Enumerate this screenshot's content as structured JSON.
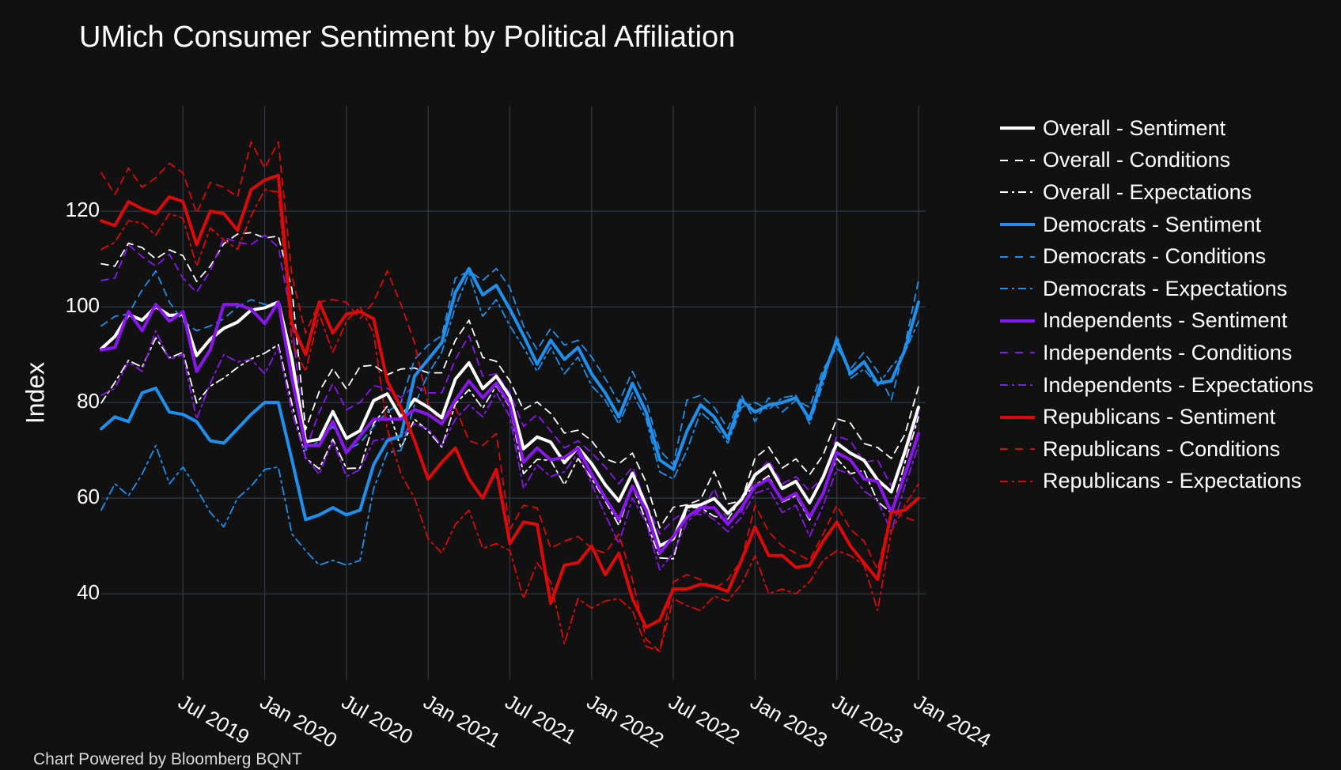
{
  "title": "UMich Consumer Sentiment by Political Affiliation",
  "footer": "Chart Powered by Bloomberg BQNT",
  "colors": {
    "background": "#111111",
    "grid": "#2e3a4a",
    "overall": "#ffffff",
    "democrats": "#1e90ee",
    "independents": "#8a16ee",
    "republicans": "#dd0a0a"
  },
  "chart_data": {
    "type": "line",
    "title": "UMich Consumer Sentiment by Political Affiliation",
    "xlabel": "",
    "ylabel": "Index",
    "ylim": [
      22,
      142
    ],
    "y_ticks": [
      40,
      60,
      80,
      100,
      120
    ],
    "x_ticks": [
      "Jul 2019",
      "Jan 2020",
      "Jul 2020",
      "Jan 2021",
      "Jul 2021",
      "Jan 2022",
      "Jul 2022",
      "Jan 2023",
      "Jul 2023",
      "Jan 2024"
    ],
    "grid": true,
    "legend_position": "right",
    "x": [
      "2019-01",
      "2019-02",
      "2019-03",
      "2019-04",
      "2019-05",
      "2019-06",
      "2019-07",
      "2019-08",
      "2019-09",
      "2019-10",
      "2019-11",
      "2019-12",
      "2020-01",
      "2020-02",
      "2020-03",
      "2020-04",
      "2020-05",
      "2020-06",
      "2020-07",
      "2020-08",
      "2020-09",
      "2020-10",
      "2020-11",
      "2020-12",
      "2021-01",
      "2021-02",
      "2021-03",
      "2021-04",
      "2021-05",
      "2021-06",
      "2021-07",
      "2021-08",
      "2021-09",
      "2021-10",
      "2021-11",
      "2021-12",
      "2022-01",
      "2022-02",
      "2022-03",
      "2022-04",
      "2022-05",
      "2022-06",
      "2022-07",
      "2022-08",
      "2022-09",
      "2022-10",
      "2022-11",
      "2022-12",
      "2023-01",
      "2023-02",
      "2023-03",
      "2023-04",
      "2023-05",
      "2023-06",
      "2023-07",
      "2023-08",
      "2023-09",
      "2023-10",
      "2023-11",
      "2023-12",
      "2024-01"
    ],
    "series": [
      {
        "name": "Overall - Sentiment",
        "group": "overall",
        "style": "solid",
        "values": [
          91.2,
          93.8,
          98.4,
          97.2,
          100.0,
          98.2,
          98.4,
          89.8,
          93.2,
          95.5,
          96.8,
          99.3,
          99.8,
          101.0,
          89.1,
          71.8,
          72.3,
          78.1,
          72.5,
          74.1,
          80.4,
          81.8,
          76.9,
          80.7,
          79.0,
          76.8,
          84.9,
          88.3,
          82.9,
          85.5,
          81.2,
          70.3,
          72.8,
          71.7,
          67.4,
          70.6,
          67.2,
          62.8,
          59.4,
          65.2,
          58.4,
          50.0,
          51.5,
          58.2,
          58.6,
          59.9,
          56.8,
          59.7,
          64.9,
          67.0,
          62.0,
          63.5,
          59.0,
          64.4,
          71.5,
          69.4,
          67.9,
          63.8,
          61.3,
          69.7,
          79.0
        ]
      },
      {
        "name": "Overall - Conditions",
        "group": "overall",
        "style": "dash",
        "values": [
          109.0,
          108.5,
          113.3,
          112.4,
          110.0,
          111.9,
          110.7,
          105.3,
          108.5,
          113.2,
          115.2,
          115.5,
          114.4,
          114.8,
          103.7,
          74.3,
          82.3,
          87.1,
          82.8,
          87.5,
          87.8,
          85.8,
          87.0,
          87.2,
          86.2,
          86.2,
          93.0,
          97.2,
          89.4,
          88.6,
          84.5,
          78.5,
          80.1,
          77.7,
          73.6,
          74.2,
          72.0,
          68.2,
          67.2,
          69.4,
          63.3,
          53.8,
          58.1,
          58.6,
          59.7,
          65.6,
          58.8,
          59.4,
          68.4,
          70.7,
          66.3,
          68.2,
          64.9,
          69.0,
          76.6,
          75.7,
          71.4,
          70.6,
          68.3,
          73.3,
          83.3
        ]
      },
      {
        "name": "Overall - Expectations",
        "group": "overall",
        "style": "dashdot",
        "values": [
          79.9,
          84.2,
          88.8,
          87.4,
          93.5,
          89.3,
          90.5,
          79.9,
          83.4,
          85.1,
          87.3,
          89.1,
          90.3,
          92.1,
          79.7,
          68.4,
          66.1,
          72.3,
          66.2,
          66.3,
          75.6,
          79.2,
          70.5,
          76.5,
          74.0,
          70.7,
          79.7,
          82.7,
          78.8,
          83.5,
          79.0,
          65.1,
          68.1,
          67.9,
          62.8,
          68.3,
          64.1,
          59.4,
          54.3,
          62.5,
          55.2,
          47.5,
          47.3,
          58.0,
          58.0,
          56.2,
          55.6,
          59.9,
          62.7,
          64.7,
          59.2,
          60.5,
          55.4,
          61.3,
          68.3,
          65.1,
          65.8,
          59.3,
          56.9,
          67.4,
          77.0
        ]
      },
      {
        "name": "Democrats - Sentiment",
        "group": "democrats",
        "style": "solid",
        "values": [
          74.5,
          77.0,
          76.0,
          82.0,
          83.0,
          78.0,
          77.5,
          76.0,
          72.0,
          71.5,
          74.5,
          77.5,
          80.0,
          80.0,
          68.0,
          55.5,
          56.5,
          58.0,
          56.5,
          57.5,
          67.0,
          72.0,
          73.0,
          85.5,
          89.0,
          92.5,
          103.0,
          108.0,
          102.5,
          104.5,
          99.5,
          94.0,
          88.0,
          93.0,
          89.0,
          91.5,
          86.0,
          82.0,
          77.0,
          84.0,
          78.0,
          68.0,
          66.0,
          74.0,
          79.5,
          77.0,
          72.5,
          80.5,
          78.0,
          79.5,
          80.0,
          81.0,
          76.5,
          85.5,
          93.0,
          86.0,
          88.5,
          84.0,
          84.5,
          91.0,
          101.0
        ]
      },
      {
        "name": "Democrats - Conditions",
        "group": "democrats",
        "style": "dash",
        "values": [
          96.0,
          98.0,
          98.5,
          103.5,
          107.5,
          101.0,
          97.0,
          95.0,
          96.0,
          97.5,
          100.0,
          101.5,
          100.5,
          101.0,
          86.0,
          70.0,
          72.0,
          75.0,
          70.0,
          71.5,
          75.0,
          78.0,
          80.0,
          89.0,
          92.0,
          94.0,
          106.0,
          107.5,
          105.5,
          108.0,
          104.0,
          96.0,
          91.0,
          95.5,
          92.0,
          93.0,
          89.5,
          85.0,
          80.0,
          86.5,
          80.5,
          70.0,
          67.0,
          80.5,
          81.5,
          79.0,
          74.5,
          81.5,
          76.0,
          81.0,
          78.0,
          80.5,
          79.0,
          87.0,
          91.5,
          87.0,
          90.5,
          86.5,
          80.5,
          92.0,
          105.5
        ]
      },
      {
        "name": "Democrats - Expectations",
        "group": "democrats",
        "style": "dashdot",
        "values": [
          57.5,
          63.0,
          60.5,
          65.0,
          71.0,
          63.0,
          66.5,
          62.0,
          57.0,
          54.0,
          60.0,
          62.5,
          66.0,
          66.5,
          52.5,
          49.0,
          46.0,
          47.0,
          46.0,
          47.0,
          62.0,
          69.5,
          70.0,
          79.5,
          86.0,
          90.5,
          100.0,
          107.0,
          98.0,
          101.5,
          96.0,
          91.5,
          86.5,
          91.5,
          86.0,
          89.5,
          83.5,
          80.5,
          75.5,
          82.0,
          76.5,
          65.5,
          64.0,
          70.0,
          78.0,
          75.5,
          71.5,
          79.0,
          80.0,
          78.5,
          81.0,
          81.5,
          75.5,
          84.0,
          94.0,
          85.0,
          87.0,
          83.5,
          87.5,
          90.5,
          97.0
        ]
      },
      {
        "name": "Independents - Sentiment",
        "group": "independents",
        "style": "solid",
        "values": [
          91.0,
          91.5,
          99.0,
          95.0,
          100.5,
          97.0,
          99.0,
          86.5,
          91.0,
          100.5,
          100.5,
          99.5,
          96.5,
          101.0,
          85.0,
          71.0,
          71.0,
          76.0,
          69.5,
          73.0,
          76.5,
          76.5,
          76.5,
          78.5,
          77.5,
          75.5,
          80.5,
          84.5,
          81.0,
          84.0,
          79.5,
          67.5,
          70.5,
          68.0,
          68.5,
          70.5,
          65.0,
          60.0,
          55.5,
          62.5,
          57.5,
          48.5,
          52.0,
          56.0,
          58.0,
          58.0,
          54.5,
          58.0,
          62.5,
          64.0,
          59.5,
          61.0,
          56.0,
          61.0,
          69.5,
          68.0,
          64.0,
          63.5,
          57.0,
          65.0,
          73.5
        ]
      },
      {
        "name": "Independents - Conditions",
        "group": "independents",
        "style": "dash",
        "values": [
          105.5,
          106.0,
          113.0,
          110.5,
          108.5,
          111.0,
          106.0,
          103.0,
          107.5,
          114.5,
          113.5,
          113.0,
          115.0,
          112.5,
          97.0,
          70.0,
          78.0,
          84.0,
          78.5,
          80.0,
          83.5,
          83.0,
          81.0,
          83.5,
          82.0,
          82.0,
          89.0,
          94.0,
          85.5,
          86.0,
          82.0,
          75.0,
          77.5,
          74.0,
          70.5,
          72.0,
          69.5,
          66.5,
          63.0,
          66.5,
          59.0,
          52.5,
          55.5,
          57.5,
          56.5,
          62.0,
          55.0,
          57.0,
          64.5,
          68.0,
          63.0,
          64.5,
          61.5,
          64.5,
          73.0,
          72.0,
          67.5,
          68.0,
          62.5,
          68.5,
          78.0
        ]
      },
      {
        "name": "Independents - Expectations",
        "group": "independents",
        "style": "dashdot",
        "values": [
          81.5,
          83.0,
          88.5,
          86.5,
          95.0,
          89.0,
          90.0,
          76.5,
          84.0,
          90.0,
          88.5,
          89.0,
          86.0,
          91.5,
          78.0,
          68.5,
          65.0,
          72.0,
          64.5,
          66.0,
          72.0,
          72.5,
          73.0,
          75.5,
          74.5,
          71.0,
          76.5,
          79.5,
          77.0,
          82.0,
          77.0,
          62.0,
          67.0,
          64.5,
          65.5,
          69.5,
          63.0,
          56.5,
          50.5,
          60.0,
          55.0,
          45.0,
          48.5,
          55.0,
          57.5,
          55.5,
          53.0,
          56.0,
          61.0,
          62.0,
          57.0,
          58.5,
          52.0,
          58.5,
          66.0,
          65.0,
          61.5,
          59.5,
          53.0,
          62.5,
          71.0
        ]
      },
      {
        "name": "Republicans - Sentiment",
        "group": "republicans",
        "style": "solid",
        "values": [
          118.0,
          117.0,
          122.0,
          120.5,
          119.5,
          123.0,
          122.0,
          113.0,
          120.0,
          119.5,
          116.0,
          124.5,
          126.5,
          127.5,
          96.5,
          90.0,
          101.0,
          94.5,
          98.5,
          99.0,
          97.5,
          84.5,
          79.0,
          72.0,
          64.0,
          67.5,
          70.5,
          64.0,
          60.0,
          66.0,
          50.5,
          55.0,
          54.5,
          38.0,
          46.0,
          46.5,
          50.0,
          44.0,
          48.5,
          39.0,
          33.0,
          34.5,
          41.0,
          41.0,
          42.0,
          41.5,
          40.5,
          47.0,
          54.0,
          48.0,
          48.0,
          45.5,
          46.0,
          51.0,
          55.0,
          50.0,
          46.5,
          43.0,
          57.0,
          57.5,
          60.0
        ]
      },
      {
        "name": "Republicans - Conditions",
        "group": "republicans",
        "style": "dash",
        "values": [
          128.0,
          123.5,
          129.0,
          125.0,
          127.0,
          130.0,
          128.0,
          119.5,
          126.0,
          125.0,
          123.0,
          134.5,
          129.0,
          134.5,
          106.5,
          94.5,
          101.0,
          101.5,
          101.0,
          97.5,
          101.0,
          107.5,
          100.5,
          92.5,
          79.5,
          75.5,
          79.0,
          72.0,
          71.0,
          73.5,
          53.5,
          58.5,
          58.0,
          49.5,
          51.0,
          52.0,
          49.5,
          48.5,
          52.5,
          43.0,
          30.5,
          28.0,
          42.5,
          44.0,
          43.0,
          41.0,
          43.0,
          47.0,
          58.5,
          53.0,
          50.0,
          48.5,
          47.0,
          52.5,
          58.5,
          53.5,
          51.0,
          45.0,
          57.5,
          56.0,
          55.0
        ]
      },
      {
        "name": "Republicans - Expectations",
        "group": "republicans",
        "style": "dashdot",
        "values": [
          112.0,
          113.5,
          118.0,
          117.5,
          115.0,
          119.5,
          118.5,
          108.5,
          116.5,
          114.0,
          112.0,
          119.0,
          124.5,
          124.0,
          92.5,
          86.5,
          98.5,
          90.5,
          97.0,
          100.0,
          94.5,
          74.5,
          65.0,
          60.0,
          51.5,
          48.5,
          54.5,
          57.5,
          49.5,
          50.5,
          49.0,
          39.0,
          46.5,
          42.5,
          29.5,
          39.0,
          37.0,
          38.5,
          39.0,
          36.5,
          29.0,
          28.0,
          39.0,
          37.5,
          36.5,
          39.5,
          38.5,
          42.0,
          48.0,
          40.0,
          41.0,
          40.0,
          42.5,
          47.0,
          49.0,
          48.0,
          46.0,
          36.5,
          53.0,
          58.5,
          63.0
        ]
      }
    ]
  }
}
